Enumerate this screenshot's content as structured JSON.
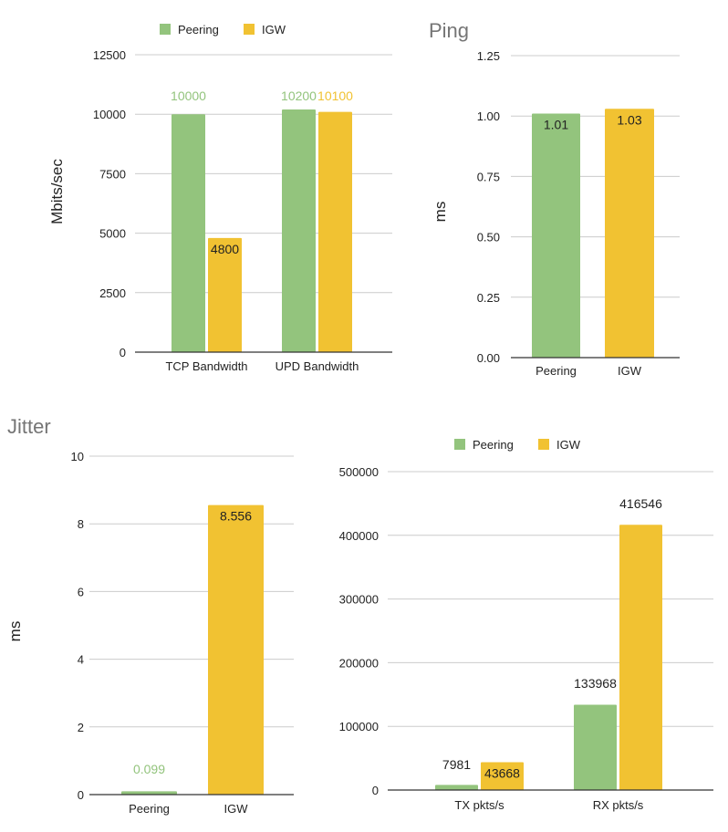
{
  "colors": {
    "peering": "#93c47d",
    "igw": "#f1c232",
    "grid": "#cccccc",
    "axis": "#333333",
    "title": "#757575",
    "text": "#222222"
  },
  "chart_data": [
    {
      "id": "bandwidth",
      "type": "bar",
      "title": "",
      "xlabel": "",
      "ylabel": "Mbits/sec",
      "ylim": [
        0,
        12500
      ],
      "yticks": [
        0,
        2500,
        5000,
        7500,
        10000,
        12500
      ],
      "grid": true,
      "legend": "top",
      "categories": [
        "TCP Bandwidth",
        "UPD Bandwidth"
      ],
      "series": [
        {
          "name": "Peering",
          "values": [
            10000,
            10200
          ],
          "labels": [
            "10000",
            "10200"
          ]
        },
        {
          "name": "IGW",
          "values": [
            4800,
            10100
          ],
          "labels": [
            "4800",
            "10100"
          ]
        }
      ]
    },
    {
      "id": "ping",
      "type": "bar",
      "title": "Ping",
      "xlabel": "",
      "ylabel": "ms",
      "ylim": [
        0,
        1.25
      ],
      "yticks": [
        "0.00",
        "0.25",
        "0.50",
        "0.75",
        "1.00",
        "1.25"
      ],
      "grid": true,
      "legend": "none",
      "categories": [
        "Peering",
        "IGW"
      ],
      "values": [
        1.01,
        1.03
      ],
      "labels": [
        "1.01",
        "1.03"
      ]
    },
    {
      "id": "jitter",
      "type": "bar",
      "title": "Jitter",
      "xlabel": "",
      "ylabel": "ms",
      "ylim": [
        0,
        10
      ],
      "yticks": [
        0,
        2,
        4,
        6,
        8,
        10
      ],
      "grid": true,
      "legend": "none",
      "categories": [
        "Peering",
        "IGW"
      ],
      "values": [
        0.099,
        8.556
      ],
      "labels": [
        "0.099",
        "8.556"
      ]
    },
    {
      "id": "packets",
      "type": "bar",
      "title": "",
      "xlabel": "",
      "ylabel": "",
      "ylim": [
        0,
        500000
      ],
      "yticks": [
        0,
        100000,
        200000,
        300000,
        400000,
        500000
      ],
      "grid": true,
      "legend": "top",
      "categories": [
        "TX pkts/s",
        "RX pkts/s"
      ],
      "series": [
        {
          "name": "Peering",
          "values": [
            7981,
            133968
          ],
          "labels": [
            "7981",
            "133968"
          ]
        },
        {
          "name": "IGW",
          "values": [
            43668,
            416546
          ],
          "labels": [
            "43668",
            "416546"
          ]
        }
      ]
    }
  ]
}
